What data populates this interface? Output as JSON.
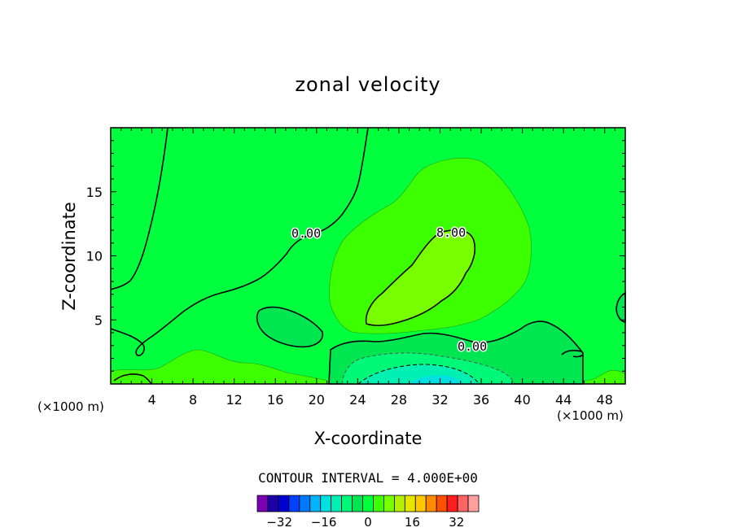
{
  "chart_data": {
    "type": "contour",
    "title": "zonal velocity",
    "xlabel": "X-coordinate",
    "ylabel": "Z-coordinate",
    "x_unit_left": "(×1000 m)",
    "x_unit_right": "(×1000 m)",
    "xlim": [
      0,
      50
    ],
    "ylim": [
      0,
      20
    ],
    "x_ticks": [
      4,
      8,
      12,
      16,
      20,
      24,
      28,
      32,
      36,
      40,
      44,
      48
    ],
    "y_ticks": [
      5,
      10,
      15
    ],
    "contour_interval_label": "CONTOUR INTERVAL = 4.000E+00",
    "contour_labels": [
      {
        "text": "0.00",
        "x": 19,
        "y": 11.7
      },
      {
        "text": "8.00",
        "x": 33,
        "y": 11.8
      },
      {
        "text": "0.00",
        "x": 35,
        "y": 3.2
      }
    ],
    "colorbar": {
      "tick_labels": [
        "-32",
        "-16",
        "0",
        "16",
        "32"
      ],
      "tick_values": [
        -32,
        -16,
        0,
        16,
        32
      ],
      "levels": [
        -40,
        -36,
        -32,
        -28,
        -24,
        -20,
        -16,
        -12,
        -8,
        -4,
        0,
        4,
        8,
        12,
        16,
        20,
        24,
        28,
        32,
        36,
        40
      ],
      "colors": [
        "#7a00b4",
        "#1c00a8",
        "#0000d0",
        "#0040ff",
        "#0078ff",
        "#00b4ff",
        "#00e0e0",
        "#00f0b4",
        "#00f878",
        "#00e650",
        "#00ff3c",
        "#3cff00",
        "#78ff00",
        "#b4f000",
        "#e6e600",
        "#ffc800",
        "#ff8c00",
        "#ff5000",
        "#ff1e1e",
        "#ff6464",
        "#ffa0a0"
      ]
    },
    "background_color": "#00ff3c",
    "grid": false
  }
}
